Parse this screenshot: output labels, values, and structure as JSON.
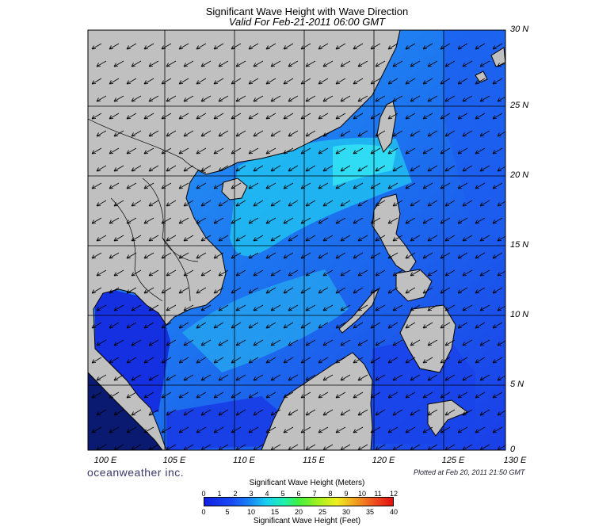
{
  "title": "Significant Wave Height with Wave Direction",
  "subtitle": "Valid For Feb-21-2011 06:00 GMT",
  "lat_labels": [
    "30 N",
    "25 N",
    "20 N",
    "15 N",
    "10 N",
    "5 N",
    "0"
  ],
  "lon_labels": [
    "100 E",
    "105 E",
    "110 E",
    "115 E",
    "120 E",
    "125 E",
    "130 E"
  ],
  "brand": "oceanweather inc.",
  "plotted": "Plotted at Feb 20, 2011 21:50 GMT",
  "colorbar": {
    "meters_title": "Significant Wave Height (Meters)",
    "meters_ticks": [
      "0",
      "1",
      "2",
      "3",
      "4",
      "5",
      "6",
      "7",
      "8",
      "9",
      "10",
      "11",
      "12"
    ],
    "feet_ticks": [
      "0",
      "5",
      "10",
      "15",
      "20",
      "25",
      "30",
      "35",
      "40"
    ],
    "feet_title": "Significant Wave Height (Feet)"
  },
  "colors": {
    "land": "#c0c0c0",
    "sea_low": "#1a30e8",
    "sea_mid": "#1c6cf2",
    "sea_high": "#20d8f0",
    "grid": "#000000"
  },
  "wave_direction": "from northeast (arrows pointing southwest)"
}
